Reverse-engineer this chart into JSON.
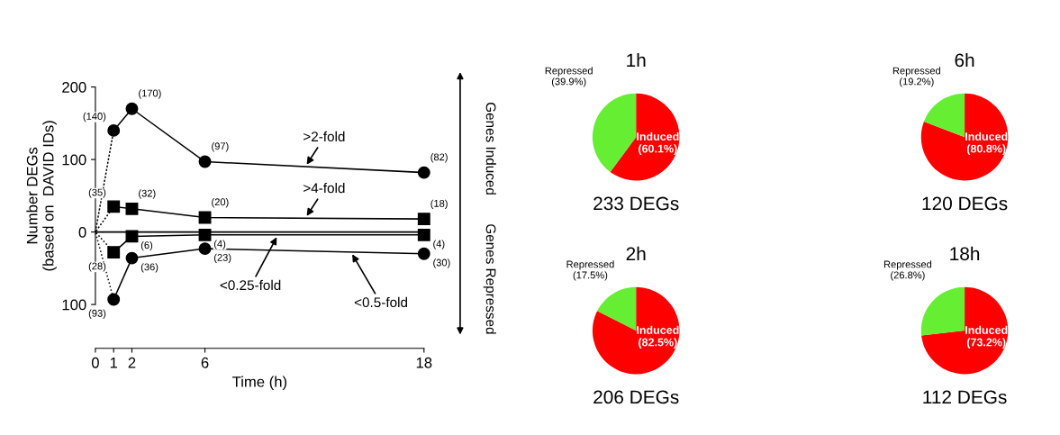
{
  "chart_data": [
    {
      "type": "line",
      "xlabel": "Time (h)",
      "ylabel": "Number DEGs\n(based on  DAVID IDs)",
      "xlim": [
        0,
        18
      ],
      "xticks": [
        0,
        1,
        2,
        6,
        18
      ],
      "ylim": [
        -100,
        200
      ],
      "yticks": [
        {
          "value": -100,
          "label": "100"
        },
        0,
        100,
        200
      ],
      "grid": false,
      "legend": false,
      "ref_lines": [
        {
          "axis": "y",
          "value": 0,
          "color": "#000000",
          "line_style": "solid"
        }
      ],
      "series": [
        {
          "name": ">2-fold",
          "color": "#000000",
          "marker": "circle",
          "line_style": "solid",
          "x": [
            1,
            2,
            6,
            18
          ],
          "values": [
            140,
            170,
            97,
            82
          ],
          "value_labels": [
            "(140)",
            "(170)",
            "(97)",
            "(82)"
          ]
        },
        {
          "name": ">4-fold",
          "color": "#000000",
          "marker": "square",
          "line_style": "solid",
          "x": [
            1,
            2,
            6,
            18
          ],
          "values": [
            35,
            32,
            20,
            18
          ],
          "value_labels": [
            "(35)",
            "(32)",
            "(20)",
            "(18)"
          ]
        },
        {
          "name": "<0.25-fold",
          "color": "#000000",
          "marker": "square",
          "line_style": "solid",
          "x": [
            1,
            2,
            6,
            18
          ],
          "values": [
            -28,
            -6,
            -4,
            -4
          ],
          "value_labels": [
            "(28)",
            "(6)",
            "(4)",
            "(4)"
          ]
        },
        {
          "name": "<0.5-fold",
          "color": "#000000",
          "marker": "circle",
          "line_style": "solid",
          "x": [
            1,
            2,
            6,
            18
          ],
          "values": [
            -93,
            -36,
            -23,
            -30
          ],
          "value_labels": [
            "(93)",
            "(36)",
            "(23)",
            "(30)"
          ]
        },
        {
          "color": "#000000",
          "marker": "none",
          "line_style": "dotted",
          "x": [
            0,
            1,
            0,
            1,
            0,
            1,
            0,
            1
          ],
          "values": [
            0,
            140,
            0,
            35,
            0,
            -28,
            0,
            -93
          ]
        }
      ],
      "annotations": [
        "Genes Induced",
        "Genes Repressed"
      ]
    },
    {
      "type": "pie",
      "title": "1h",
      "categories": [
        "Induced",
        "Repressed"
      ],
      "values": [
        60.1,
        39.9
      ],
      "colors": [
        "#ff0000",
        "#66ee33"
      ],
      "value_labels": [
        "(60.1%)",
        "(39.9%)"
      ],
      "annotations": [
        "233 DEGs"
      ]
    },
    {
      "type": "pie",
      "title": "6h",
      "categories": [
        "Induced",
        "Repressed"
      ],
      "values": [
        80.8,
        19.2
      ],
      "colors": [
        "#ff0000",
        "#66ee33"
      ],
      "value_labels": [
        "(80.8%)",
        "(19.2%)"
      ],
      "annotations": [
        "120 DEGs"
      ]
    },
    {
      "type": "pie",
      "title": "2h",
      "categories": [
        "Induced",
        "Repressed"
      ],
      "values": [
        82.5,
        17.5
      ],
      "colors": [
        "#ff0000",
        "#66ee33"
      ],
      "value_labels": [
        "(82.5%)",
        "(17.5%)"
      ],
      "annotations": [
        "206 DEGs"
      ]
    },
    {
      "type": "pie",
      "title": "18h",
      "categories": [
        "Induced",
        "Repressed"
      ],
      "values": [
        73.2,
        26.8
      ],
      "colors": [
        "#ff0000",
        "#66ee33"
      ],
      "value_labels": [
        "(73.2%)",
        "(26.8%)"
      ],
      "annotations": [
        "112 DEGs"
      ]
    }
  ]
}
